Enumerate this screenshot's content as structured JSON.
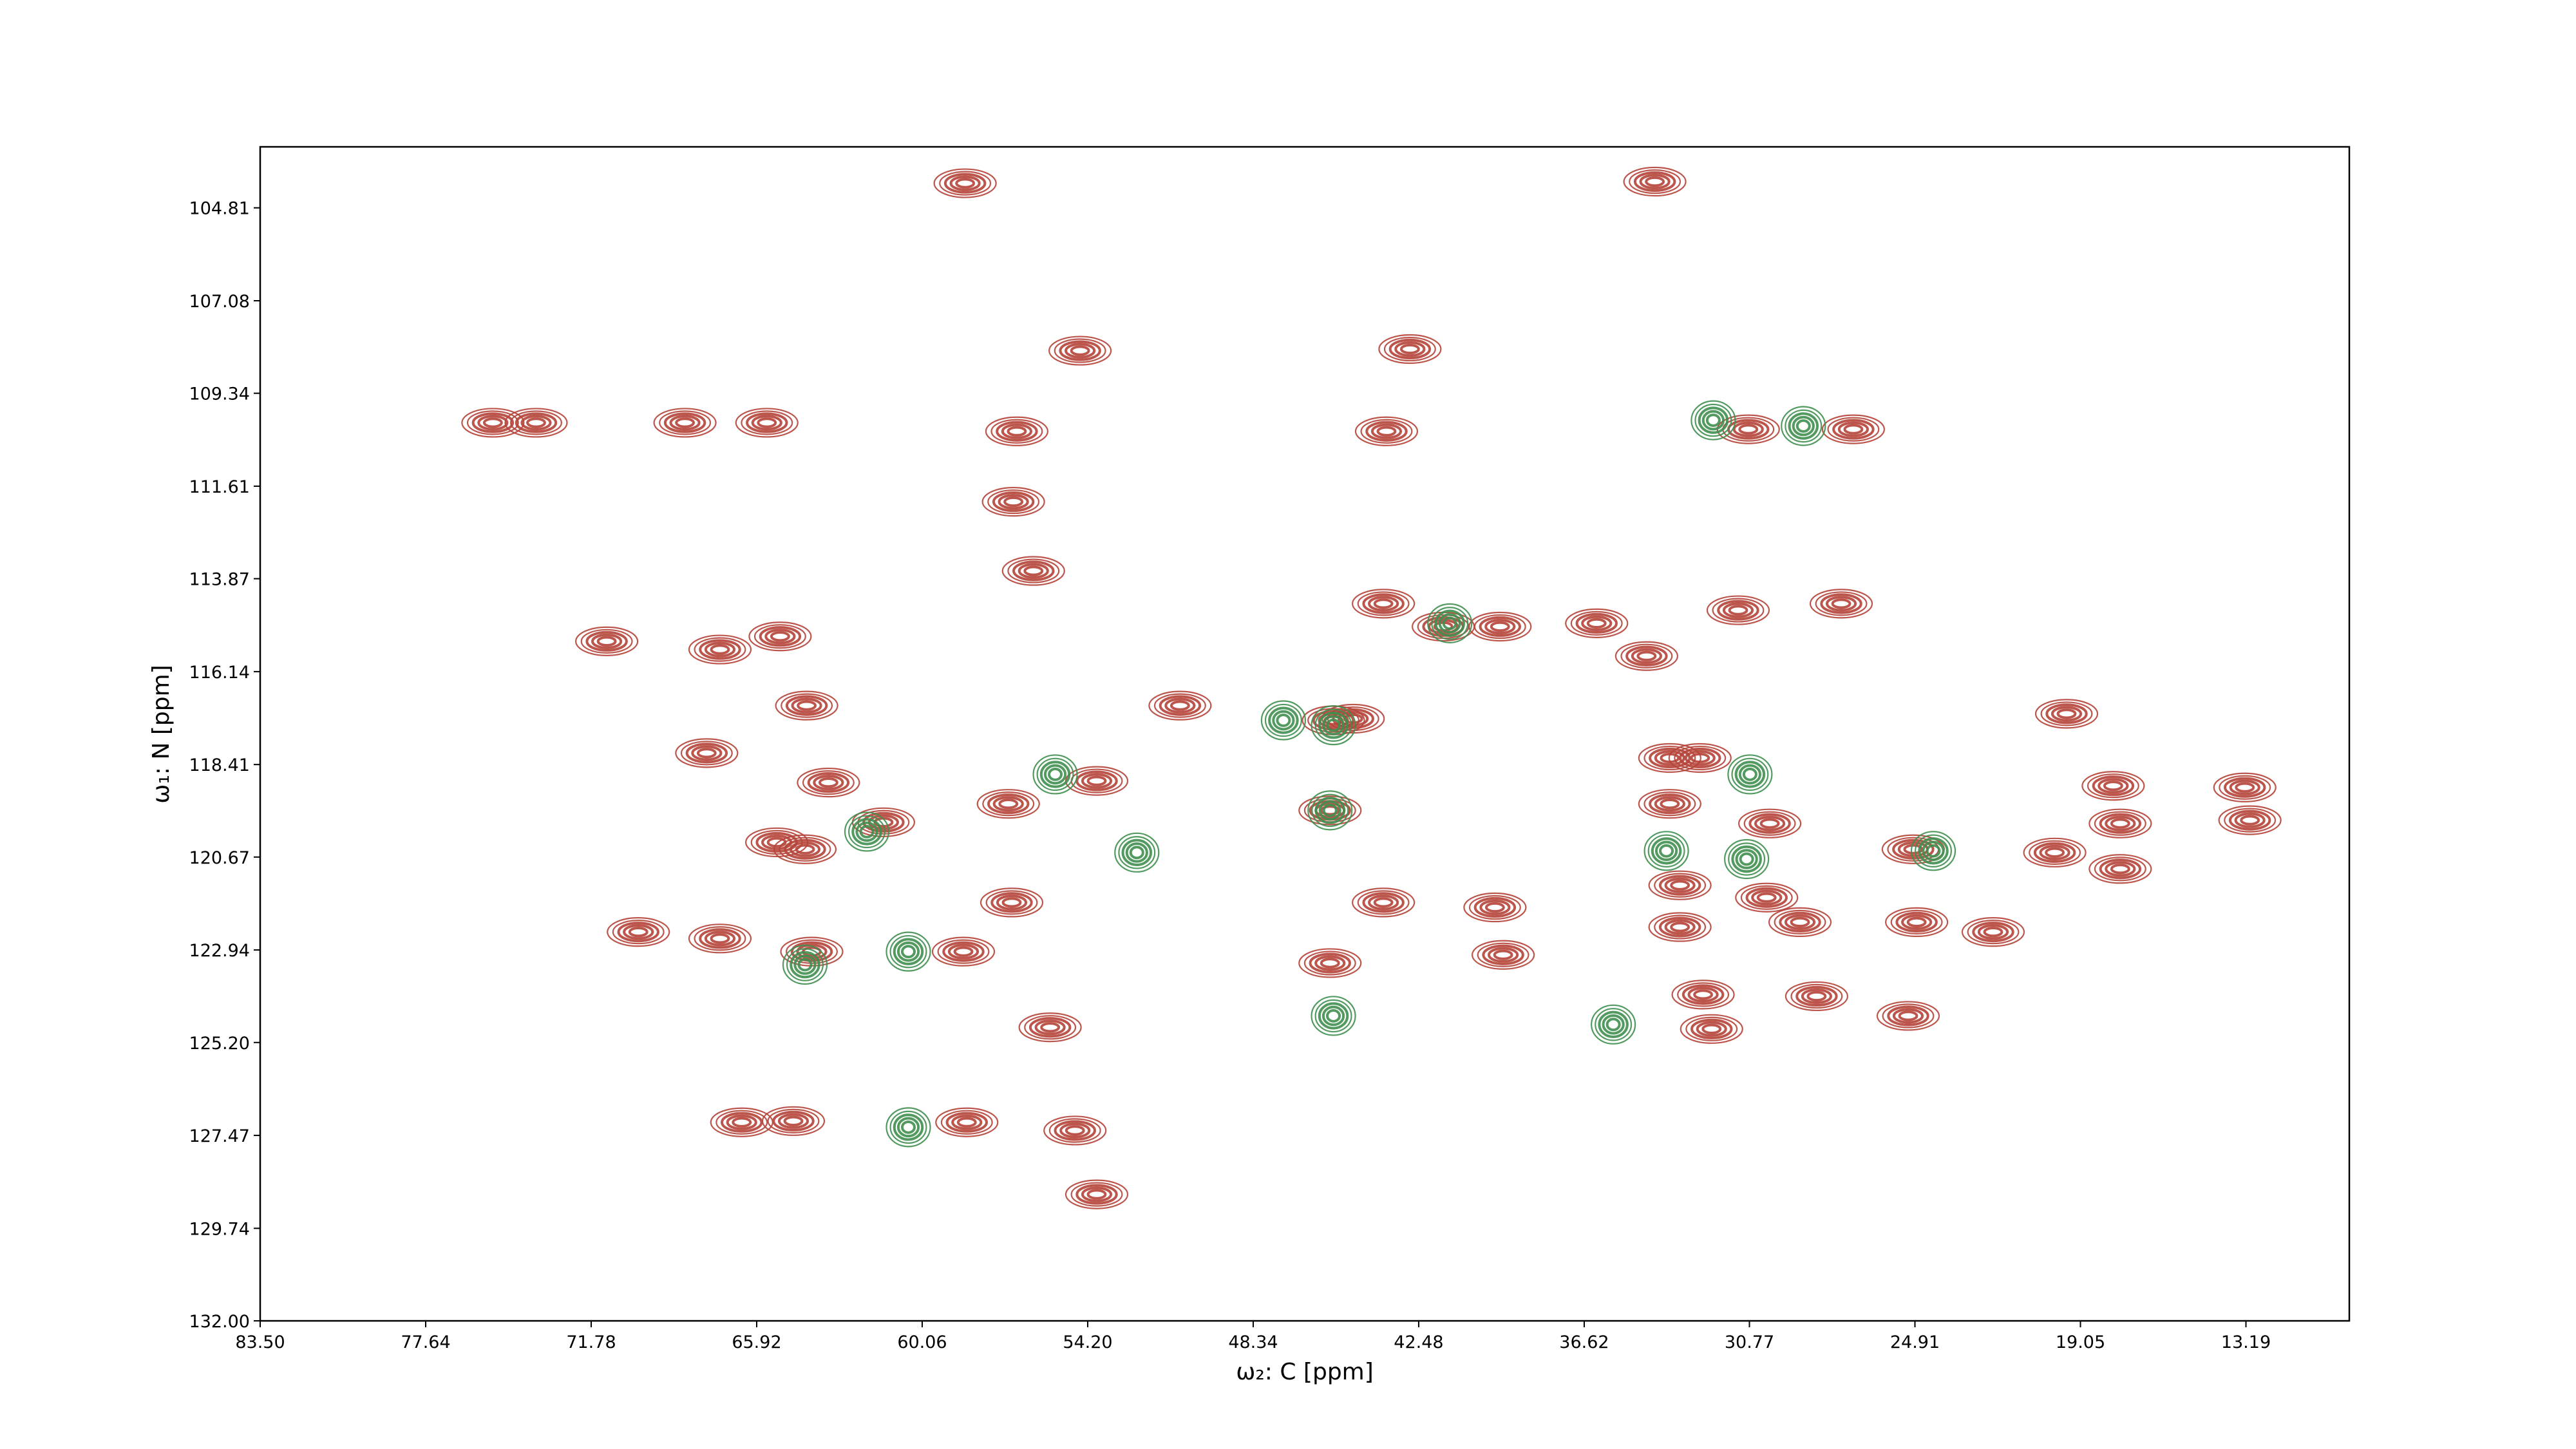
{
  "chart_data": {
    "type": "contour",
    "xlabel": "ω₂: C [ppm]",
    "ylabel": "ω₁: N [ppm]",
    "xlim": [
      83.5,
      9.53
    ],
    "ylim": [
      132.0,
      103.32
    ],
    "xticks": [
      {
        "value": 83.5,
        "label": "83.50"
      },
      77.64,
      71.78,
      65.92,
      60.06,
      {
        "value": 54.2,
        "label": "54.20"
      },
      48.34,
      42.48,
      36.62,
      30.77,
      24.91,
      19.05,
      13.19
    ],
    "yticks": [
      104.81,
      107.08,
      109.34,
      111.61,
      113.87,
      116.14,
      118.41,
      120.67,
      122.94,
      {
        "value": 125.2,
        "label": "125.20"
      },
      127.47,
      129.74,
      {
        "value": 132.0,
        "label": "132.00"
      }
    ],
    "series": [
      {
        "color": "#b5443a",
        "x": [
          58.54,
          34.12,
          54.47,
          42.79,
          75.26,
          73.73,
          68.46,
          65.56,
          56.71,
          43.62,
          30.81,
          27.09,
          41.61,
          39.6,
          43.73,
          36.18,
          34.41,
          31.17,
          27.52,
          71.23,
          67.22,
          65.09,
          64.15,
          56.12,
          56.83,
          45.5,
          50.93,
          19.54,
          53.88,
          67.69,
          63.38,
          61.43,
          57.01,
          45.62,
          64.21,
          65.21,
          33.59,
          33.59,
          30.05,
          24.97,
          17.89,
          17.64,
          13.23,
          13.05,
          19.96,
          17.64,
          33.23,
          30.16,
          43.73,
          39.78,
          33.23,
          28.98,
          24.85,
          22.14,
          70.11,
          67.22,
          63.97,
          58.6,
          56.89,
          45.62,
          39.49,
          32.41,
          32.11,
          28.39,
          25.15,
          55.53,
          64.62,
          58.48,
          66.45,
          54.65,
          53.88,
          44.8,
          32.52
        ],
        "y": [
          104.21,
          104.17,
          108.3,
          108.26,
          110.06,
          110.06,
          110.06,
          110.06,
          110.27,
          110.27,
          110.22,
          110.22,
          115.04,
          115.04,
          114.48,
          114.96,
          115.76,
          114.64,
          114.48,
          115.4,
          115.6,
          115.28,
          116.97,
          113.68,
          111.99,
          117.33,
          116.97,
          117.17,
          118.81,
          118.13,
          118.85,
          119.82,
          119.37,
          119.53,
          120.48,
          120.31,
          119.37,
          118.25,
          119.85,
          120.48,
          118.93,
          119.85,
          118.97,
          119.77,
          120.56,
          120.96,
          121.36,
          121.66,
          121.78,
          121.9,
          122.38,
          122.26,
          122.26,
          122.5,
          122.5,
          122.66,
          122.98,
          122.98,
          121.78,
          123.26,
          123.06,
          124.03,
          124.87,
          124.07,
          124.55,
          124.83,
          127.12,
          127.15,
          127.15,
          127.35,
          128.91,
          117.29,
          118.25
        ]
      },
      {
        "color": "#3f8f4f",
        "x": [
          52.46,
          45.5,
          45.62,
          45.5,
          55.35,
          62.02,
          35.59,
          28.86,
          32.05,
          41.38,
          64.21,
          60.55,
          60.55,
          30.87,
          24.26,
          33.71,
          30.75,
          47.27
        ],
        "y": [
          120.56,
          117.45,
          119.53,
          124.55,
          118.65,
          120.05,
          124.76,
          110.14,
          110.0,
          114.96,
          123.3,
          122.98,
          127.27,
          120.72,
          120.52,
          120.52,
          118.65,
          117.33
        ]
      }
    ]
  }
}
